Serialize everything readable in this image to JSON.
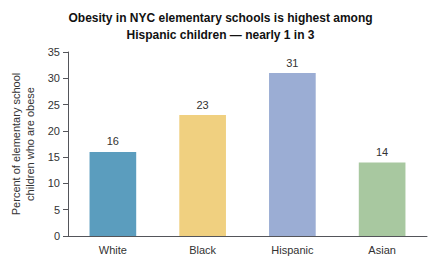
{
  "chart_data": {
    "type": "bar",
    "title": "Obesity in NYC elementary schools is highest among\nHispanic children — nearly 1 in 3",
    "ylabel": "Percent of elementary school\nchildren who are obese",
    "categories": [
      "White",
      "Black",
      "Hispanic",
      "Asian"
    ],
    "values": [
      16,
      23,
      31,
      14
    ],
    "colors": [
      "#5b9dbe",
      "#f0d080",
      "#9badd4",
      "#a8c8a0"
    ],
    "ylim": [
      0,
      35
    ],
    "yticks": [
      0,
      5,
      10,
      15,
      20,
      25,
      30,
      35
    ],
    "data_labels": true,
    "grid": false
  }
}
